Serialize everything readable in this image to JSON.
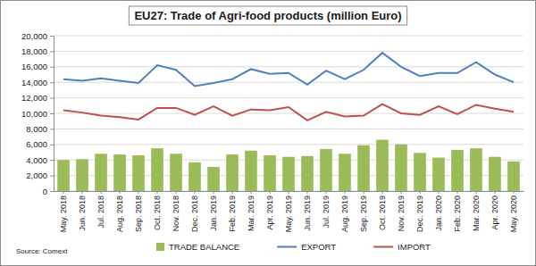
{
  "chart_data": {
    "type": "bar",
    "title": "EU27: Trade of Agri-food products (million Euro)",
    "source": "Source: Comext",
    "categories": [
      "May. 2018",
      "Jun. 2018",
      "Jul. 2018",
      "Aug. 2018",
      "Sep. 2018",
      "Oct. 2018",
      "Nov. 2018",
      "Dec. 2018",
      "Jan. 2019",
      "Feb. 2019",
      "Mar. 2019",
      "Apr. 2019",
      "May. 2019",
      "Jun. 2019",
      "Jul. 2019",
      "Aug. 2019",
      "Sep. 2019",
      "Oct. 2019",
      "Nov. 2019",
      "Dec. 2019",
      "Jan. 2020",
      "Feb. 2020",
      "Mar. 2020",
      "Apr. 2020",
      "May. 2020"
    ],
    "series": [
      {
        "name": "TRADE BALANCE",
        "type": "bar",
        "color": "#9bbb59",
        "values": [
          4000,
          4100,
          4800,
          4700,
          4600,
          5500,
          4800,
          3700,
          3100,
          4700,
          5200,
          4600,
          4400,
          4500,
          5400,
          4800,
          5900,
          6600,
          6000,
          4900,
          4300,
          5300,
          5500,
          4400,
          3800
        ]
      },
      {
        "name": "EXPORT",
        "type": "line",
        "color": "#4f81bd",
        "values": [
          14400,
          14200,
          14500,
          14200,
          13900,
          16200,
          15600,
          13500,
          13900,
          14400,
          15700,
          15100,
          15200,
          13700,
          15500,
          14400,
          15600,
          17800,
          16000,
          14800,
          15200,
          15200,
          16600,
          15000,
          14000
        ]
      },
      {
        "name": "IMPORT",
        "type": "line",
        "color": "#c0504d",
        "values": [
          10400,
          10100,
          9700,
          9500,
          9200,
          10700,
          10700,
          9800,
          10900,
          9700,
          10500,
          10400,
          10800,
          9100,
          10200,
          9600,
          9700,
          11200,
          10000,
          9800,
          10900,
          9900,
          11100,
          10600,
          10200
        ]
      }
    ],
    "ylim": [
      0,
      20000
    ],
    "yticks": [
      0,
      {
        "value": 2000,
        "label": "2,000"
      },
      {
        "value": 4000,
        "label": "4,000"
      },
      {
        "value": 6000,
        "label": "6,000"
      },
      {
        "value": 8000,
        "label": "8,000"
      },
      {
        "value": 10000,
        "label": "10,000"
      },
      {
        "value": 12000,
        "label": "12,000"
      },
      {
        "value": 14000,
        "label": "14,000"
      },
      {
        "value": 16000,
        "label": "16,000"
      },
      {
        "value": 18000,
        "label": "18,000"
      },
      {
        "value": 20000,
        "label": "20,000"
      }
    ],
    "grid": true,
    "legend": "bottom"
  }
}
